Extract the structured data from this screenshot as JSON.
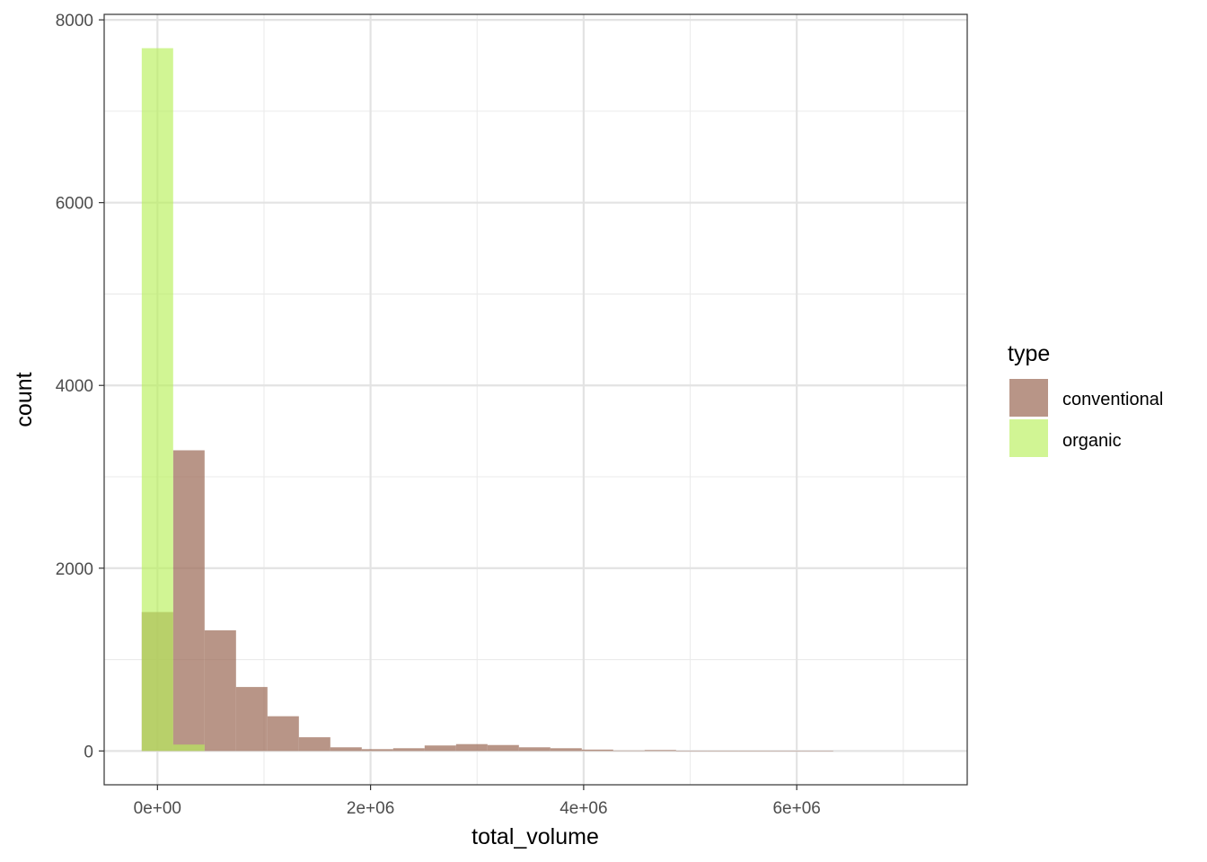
{
  "chart_data": {
    "type": "bar",
    "xlabel": "total_volume",
    "ylabel": "count",
    "xlim": [
      -500000,
      7600000
    ],
    "ylim": [
      -370,
      8060
    ],
    "x_ticks": [
      0,
      2000000,
      4000000,
      6000000
    ],
    "x_tick_labels": [
      "0e+00",
      "2e+06",
      "4e+06",
      "6e+06"
    ],
    "y_ticks": [
      0,
      2000,
      4000,
      6000,
      8000
    ],
    "y_tick_labels": [
      "0",
      "2000",
      "4000",
      "6000",
      "8000"
    ],
    "grid": true,
    "bin_width": 295000,
    "legend": {
      "title": "type",
      "placement": "right",
      "entries": [
        "conventional",
        "organic"
      ]
    },
    "series": [
      {
        "name": "conventional",
        "color": "#A0715F",
        "opacity": 0.75,
        "bin_starts": [
          -147500,
          147500,
          442500,
          737500,
          1032500,
          1327500,
          1622500,
          1917500,
          2212500,
          2507500,
          2802500,
          3097500,
          3392500,
          3687500,
          3982500,
          4277500,
          4572500,
          4867500,
          5162500,
          5457500,
          5752500,
          6047500,
          6342500,
          6637500,
          6932500
        ],
        "values": [
          1520,
          3290,
          1320,
          700,
          380,
          150,
          40,
          20,
          30,
          60,
          75,
          65,
          40,
          30,
          15,
          5,
          10,
          3,
          2,
          2,
          1,
          1,
          0,
          0,
          0
        ]
      },
      {
        "name": "organic",
        "color": "#B8F05A",
        "opacity": 0.65,
        "bin_starts": [
          -147500,
          147500
        ],
        "values": [
          7690,
          70
        ]
      }
    ]
  }
}
